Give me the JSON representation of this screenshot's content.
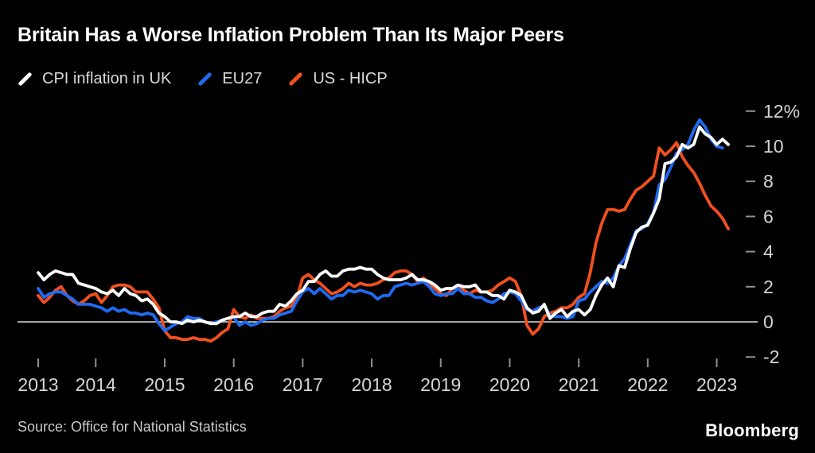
{
  "header": {
    "title": "Britain Has a Worse Inflation Problem Than Its Major Peers"
  },
  "legend": {
    "items": [
      {
        "label": "CPI inflation in UK",
        "color": "#ffffff"
      },
      {
        "label": "EU27",
        "color": "#1f6bf2"
      },
      {
        "label": "US - HICP",
        "color": "#f1501e"
      }
    ]
  },
  "chart_data": {
    "type": "line",
    "title": "Britain Has a Worse Inflation Problem Than Its Major Peers",
    "xlabel": "",
    "ylabel": "",
    "unit": "%",
    "frequency": "monthly",
    "x_start": "2013-03",
    "x_end": "2023-03",
    "ylim": [
      -2.9,
      12.6
    ],
    "grid": "zero-line-only",
    "legend_position": "top-left",
    "y_ticks": [
      {
        "v": -2,
        "label": "-2"
      },
      {
        "v": 0,
        "label": "0"
      },
      {
        "v": 2,
        "label": "2"
      },
      {
        "v": 4,
        "label": "4"
      },
      {
        "v": 6,
        "label": "6"
      },
      {
        "v": 8,
        "label": "8"
      },
      {
        "v": 10,
        "label": "10"
      },
      {
        "v": 12,
        "label": "12%"
      }
    ],
    "x_ticks": [
      {
        "label": "2013",
        "month": 0
      },
      {
        "label": "2014",
        "month": 10
      },
      {
        "label": "2015",
        "month": 22
      },
      {
        "label": "2016",
        "month": 34
      },
      {
        "label": "2017",
        "month": 46
      },
      {
        "label": "2018",
        "month": 58
      },
      {
        "label": "2019",
        "month": 70
      },
      {
        "label": "2020",
        "month": 82
      },
      {
        "label": "2021",
        "month": 94
      },
      {
        "label": "2022",
        "month": 106
      },
      {
        "label": "2023",
        "month": 118
      }
    ],
    "series": [
      {
        "name": "CPI inflation in UK",
        "color": "#ffffff",
        "start": "2013-03",
        "values": [
          2.8,
          2.4,
          2.7,
          2.9,
          2.8,
          2.7,
          2.7,
          2.2,
          2.1,
          2.0,
          1.9,
          1.7,
          1.6,
          1.8,
          1.5,
          1.9,
          1.6,
          1.5,
          1.2,
          1.3,
          1.0,
          0.5,
          0.3,
          0.0,
          0.0,
          -0.1,
          0.1,
          0.0,
          0.1,
          0.0,
          -0.1,
          -0.1,
          0.1,
          0.2,
          0.3,
          0.3,
          0.5,
          0.3,
          0.3,
          0.5,
          0.6,
          0.6,
          1.0,
          0.9,
          1.2,
          1.6,
          1.8,
          2.3,
          2.3,
          2.7,
          2.9,
          2.6,
          2.6,
          2.9,
          3.0,
          3.0,
          3.1,
          3.0,
          3.0,
          2.7,
          2.5,
          2.4,
          2.4,
          2.4,
          2.5,
          2.7,
          2.4,
          2.4,
          2.3,
          2.1,
          1.8,
          1.9,
          1.9,
          2.1,
          2.0,
          2.0,
          2.1,
          1.7,
          1.7,
          1.5,
          1.5,
          1.3,
          1.8,
          1.7,
          1.5,
          0.8,
          0.5,
          0.6,
          1.0,
          0.2,
          0.5,
          0.7,
          0.3,
          0.6,
          0.7,
          0.4,
          0.7,
          1.5,
          2.1,
          2.5,
          2.0,
          3.2,
          3.1,
          4.2,
          5.1,
          5.4,
          5.5,
          6.2,
          7.0,
          9.0,
          9.1,
          9.4,
          10.1,
          9.9,
          10.1,
          11.1,
          10.7,
          10.5,
          10.1,
          10.4,
          10.1
        ]
      },
      {
        "name": "EU27",
        "color": "#1f6bf2",
        "start": "2013-03",
        "values": [
          1.9,
          1.4,
          1.6,
          1.7,
          1.7,
          1.5,
          1.3,
          1.0,
          1.0,
          1.0,
          0.9,
          0.8,
          0.6,
          0.8,
          0.6,
          0.7,
          0.5,
          0.5,
          0.4,
          0.5,
          0.4,
          -0.1,
          -0.5,
          -0.3,
          -0.1,
          0.0,
          0.3,
          0.2,
          0.2,
          0.0,
          -0.1,
          0.0,
          0.1,
          0.2,
          0.3,
          -0.2,
          0.0,
          -0.2,
          -0.1,
          0.1,
          0.2,
          0.2,
          0.4,
          0.5,
          0.6,
          1.2,
          1.7,
          1.9,
          1.6,
          1.9,
          1.6,
          1.3,
          1.5,
          1.5,
          1.8,
          1.7,
          1.8,
          1.7,
          1.6,
          1.3,
          1.5,
          1.5,
          2.0,
          2.1,
          2.2,
          2.1,
          2.2,
          2.3,
          2.0,
          1.6,
          1.5,
          1.6,
          1.6,
          1.9,
          1.6,
          1.6,
          1.4,
          1.4,
          1.2,
          1.1,
          1.3,
          1.6,
          1.7,
          1.6,
          1.2,
          0.7,
          0.6,
          0.8,
          0.9,
          0.4,
          0.3,
          0.3,
          0.2,
          0.3,
          1.2,
          1.3,
          1.7,
          2.0,
          2.3,
          2.2,
          2.5,
          3.2,
          3.6,
          4.4,
          5.2,
          5.3,
          5.6,
          6.2,
          7.8,
          8.1,
          8.8,
          9.6,
          9.8,
          10.1,
          10.9,
          11.5,
          11.1,
          10.4,
          10.0,
          9.9
        ]
      },
      {
        "name": "US - HICP",
        "color": "#f1501e",
        "start": "2013-03",
        "values": [
          1.5,
          1.1,
          1.4,
          1.8,
          2.0,
          1.5,
          1.2,
          1.0,
          1.2,
          1.5,
          1.6,
          1.1,
          1.5,
          2.0,
          2.1,
          2.1,
          2.0,
          1.7,
          1.7,
          1.7,
          1.3,
          0.8,
          -0.5,
          -0.9,
          -0.9,
          -1.0,
          -1.0,
          -0.9,
          -1.0,
          -1.0,
          -1.1,
          -0.9,
          -0.6,
          -0.4,
          0.7,
          0.3,
          0.2,
          0.4,
          0.2,
          0.2,
          0.2,
          0.3,
          0.6,
          0.8,
          0.9,
          1.4,
          2.5,
          2.7,
          2.4,
          2.2,
          1.9,
          1.6,
          1.7,
          1.9,
          2.2,
          2.0,
          2.2,
          2.1,
          2.1,
          2.2,
          2.4,
          2.5,
          2.8,
          2.9,
          2.9,
          2.7,
          2.3,
          2.5,
          2.2,
          1.9,
          1.6,
          1.5,
          1.9,
          2.0,
          1.8,
          1.6,
          1.8,
          1.7,
          1.7,
          1.8,
          2.1,
          2.3,
          2.5,
          2.3,
          1.5,
          -0.2,
          -0.7,
          -0.4,
          0.3,
          0.5,
          0.6,
          0.8,
          0.8,
          1.0,
          1.4,
          1.6,
          2.8,
          4.5,
          5.6,
          6.4,
          6.4,
          6.3,
          6.4,
          7.0,
          7.5,
          7.7,
          8.0,
          8.3,
          9.9,
          9.5,
          9.8,
          10.2,
          9.4,
          8.9,
          8.5,
          7.9,
          7.2,
          6.6,
          6.3,
          5.9,
          5.3
        ]
      }
    ]
  },
  "footer": {
    "source": "Source: Office for National Statistics",
    "brand": "Bloomberg"
  }
}
